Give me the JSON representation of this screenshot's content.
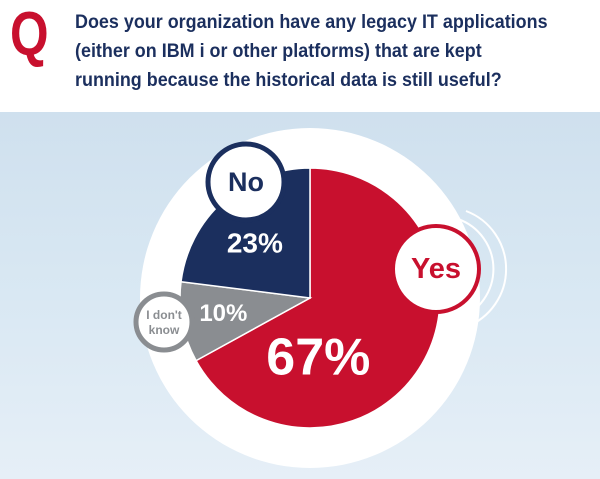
{
  "header": {
    "q_label": "Q",
    "question": "Does your organization have any legacy IT applications (either on IBM i or other platforms) that are kept running because the historical data is still useful?"
  },
  "colors": {
    "brand_red": "#c8102e",
    "navy": "#1b2f5e",
    "gray": "#8a8d91",
    "background": "#d9e8f3"
  },
  "chart_data": {
    "type": "pie",
    "title": "",
    "slices": [
      {
        "label": "Yes",
        "value": 67,
        "value_label": "67%",
        "color": "#c8102e"
      },
      {
        "label": "I don't know",
        "value": 10,
        "value_label": "10%",
        "color": "#8a8d91"
      },
      {
        "label": "No",
        "value": 23,
        "value_label": "23%",
        "color": "#1b2f5e"
      }
    ]
  }
}
